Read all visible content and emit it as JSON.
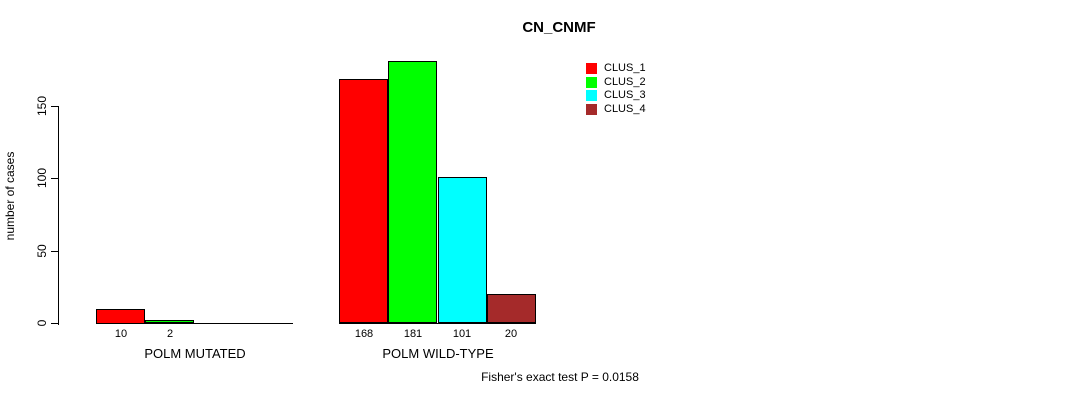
{
  "chart_data": {
    "type": "bar",
    "title": "CN_CNMF",
    "ylabel": "number of cases",
    "ylim": [
      0,
      150
    ],
    "yticks": [
      0,
      50,
      100,
      150
    ],
    "grid": false,
    "legend_position": "top-right",
    "categories": [
      "POLM MUTATED",
      "POLM WILD-TYPE"
    ],
    "series": [
      {
        "name": "CLUS_1",
        "color": "#ff0000",
        "values": [
          10,
          168
        ]
      },
      {
        "name": "CLUS_2",
        "color": "#00ff00",
        "values": [
          2,
          181
        ]
      },
      {
        "name": "CLUS_3",
        "color": "#00ffff",
        "values": [
          0,
          101
        ]
      },
      {
        "name": "CLUS_4",
        "color": "#a52a2a",
        "values": [
          0,
          20
        ]
      }
    ],
    "bar_labels": [
      [
        "10",
        "2",
        "",
        ""
      ],
      [
        "168",
        "181",
        "101",
        "20"
      ]
    ]
  },
  "footer": {
    "text": "Fisher's exact test P = 0.0158"
  },
  "colors": {
    "background": "#ffffff",
    "axis": "#000000",
    "text": "#000000"
  }
}
